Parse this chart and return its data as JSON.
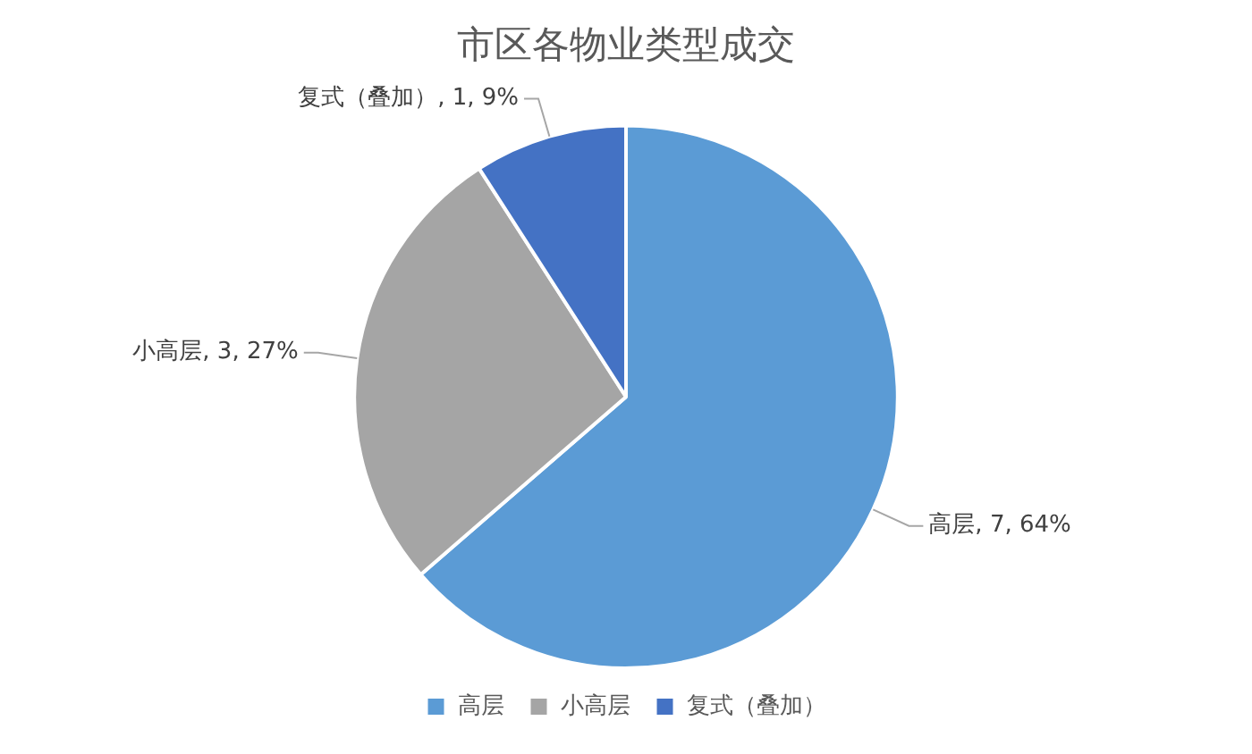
{
  "chart_data": {
    "type": "pie",
    "title": "市区各物业类型成交",
    "categories": [
      "高层",
      "小高层",
      "复式（叠加）"
    ],
    "values": [
      7,
      3,
      1
    ],
    "colors": [
      "#5b9bd5",
      "#a5a5a5",
      "#4472c4"
    ],
    "value_labels": [
      "高层, 7, 64%",
      "小高层, 3, 27%",
      "复式（叠加）, 1, 9%"
    ],
    "legend": "bottom"
  }
}
